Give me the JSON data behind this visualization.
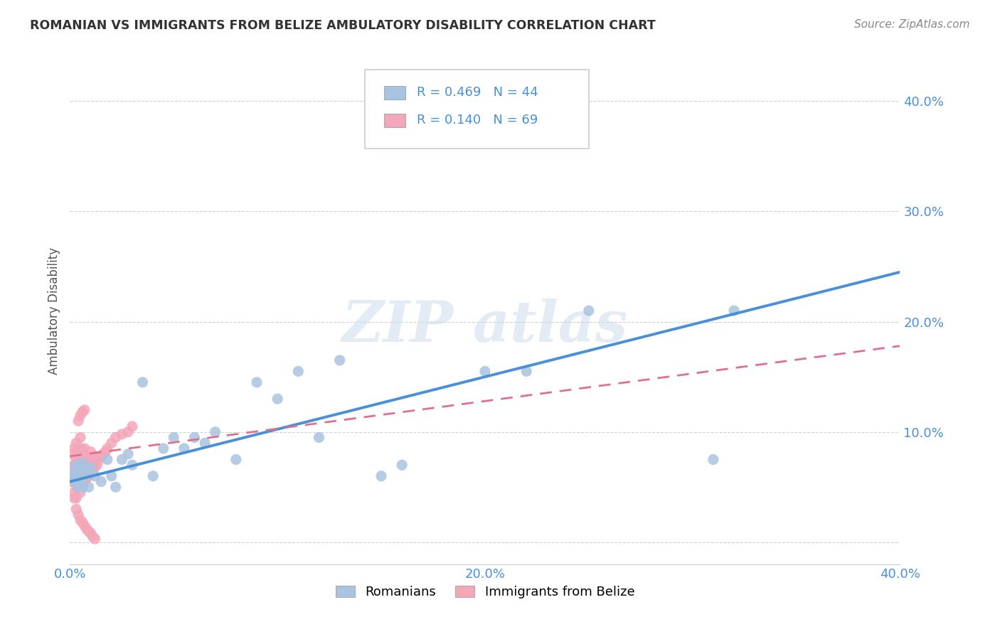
{
  "title": "ROMANIAN VS IMMIGRANTS FROM BELIZE AMBULATORY DISABILITY CORRELATION CHART",
  "source": "Source: ZipAtlas.com",
  "ylabel": "Ambulatory Disability",
  "xlim": [
    0.0,
    0.4
  ],
  "ylim": [
    -0.02,
    0.44
  ],
  "yticks": [
    0.0,
    0.1,
    0.2,
    0.3,
    0.4
  ],
  "xticks": [
    0.0,
    0.1,
    0.2,
    0.3,
    0.4
  ],
  "xticklabels": [
    "0.0%",
    "",
    "20.0%",
    "",
    "40.0%"
  ],
  "yticklabels": [
    "",
    "10.0%",
    "20.0%",
    "30.0%",
    "40.0%"
  ],
  "romanians_R": 0.469,
  "romanians_N": 44,
  "belize_R": 0.14,
  "belize_N": 69,
  "romanian_color": "#a8c4e0",
  "belize_color": "#f4a7b9",
  "romanian_line_color": "#4a90d9",
  "belize_line_color": "#e07090",
  "legend_label_romanian": "Romanians",
  "legend_label_belize": "Immigrants from Belize",
  "rom_line_x0": 0.0,
  "rom_line_y0": 0.055,
  "rom_line_x1": 0.4,
  "rom_line_y1": 0.245,
  "bel_line_x0": 0.0,
  "bel_line_y0": 0.078,
  "bel_line_x1": 0.4,
  "bel_line_y1": 0.178,
  "romanians_x": [
    0.001,
    0.002,
    0.002,
    0.003,
    0.003,
    0.004,
    0.004,
    0.005,
    0.005,
    0.006,
    0.006,
    0.007,
    0.008,
    0.009,
    0.01,
    0.012,
    0.015,
    0.018,
    0.02,
    0.022,
    0.025,
    0.028,
    0.03,
    0.035,
    0.04,
    0.045,
    0.05,
    0.055,
    0.06,
    0.065,
    0.07,
    0.08,
    0.09,
    0.1,
    0.11,
    0.12,
    0.13,
    0.15,
    0.16,
    0.2,
    0.22,
    0.25,
    0.31,
    0.32
  ],
  "romanians_y": [
    0.06,
    0.055,
    0.065,
    0.058,
    0.07,
    0.05,
    0.062,
    0.055,
    0.068,
    0.05,
    0.072,
    0.06,
    0.065,
    0.05,
    0.068,
    0.06,
    0.055,
    0.075,
    0.06,
    0.05,
    0.075,
    0.08,
    0.07,
    0.145,
    0.06,
    0.085,
    0.095,
    0.085,
    0.095,
    0.09,
    0.1,
    0.075,
    0.145,
    0.13,
    0.155,
    0.095,
    0.165,
    0.06,
    0.07,
    0.155,
    0.155,
    0.21,
    0.075,
    0.21
  ],
  "belize_x": [
    0.001,
    0.001,
    0.001,
    0.002,
    0.002,
    0.002,
    0.002,
    0.003,
    0.003,
    0.003,
    0.003,
    0.003,
    0.004,
    0.004,
    0.004,
    0.004,
    0.005,
    0.005,
    0.005,
    0.005,
    0.005,
    0.005,
    0.006,
    0.006,
    0.006,
    0.006,
    0.007,
    0.007,
    0.007,
    0.007,
    0.008,
    0.008,
    0.008,
    0.009,
    0.009,
    0.01,
    0.01,
    0.01,
    0.011,
    0.011,
    0.012,
    0.012,
    0.013,
    0.014,
    0.015,
    0.016,
    0.017,
    0.018,
    0.02,
    0.022,
    0.025,
    0.028,
    0.03,
    0.003,
    0.004,
    0.005,
    0.006,
    0.007,
    0.008,
    0.009,
    0.01,
    0.011,
    0.012,
    0.004,
    0.005,
    0.006,
    0.007,
    0.002,
    0.003
  ],
  "belize_y": [
    0.055,
    0.068,
    0.08,
    0.045,
    0.06,
    0.07,
    0.085,
    0.04,
    0.055,
    0.065,
    0.075,
    0.09,
    0.05,
    0.06,
    0.072,
    0.085,
    0.045,
    0.055,
    0.065,
    0.075,
    0.085,
    0.095,
    0.05,
    0.062,
    0.072,
    0.082,
    0.055,
    0.065,
    0.075,
    0.085,
    0.058,
    0.068,
    0.078,
    0.06,
    0.072,
    0.062,
    0.072,
    0.082,
    0.065,
    0.075,
    0.068,
    0.078,
    0.07,
    0.075,
    0.078,
    0.08,
    0.082,
    0.085,
    0.09,
    0.095,
    0.098,
    0.1,
    0.105,
    0.03,
    0.025,
    0.02,
    0.018,
    0.015,
    0.012,
    0.01,
    0.008,
    0.005,
    0.003,
    0.11,
    0.115,
    0.118,
    0.12,
    0.04,
    0.05
  ]
}
